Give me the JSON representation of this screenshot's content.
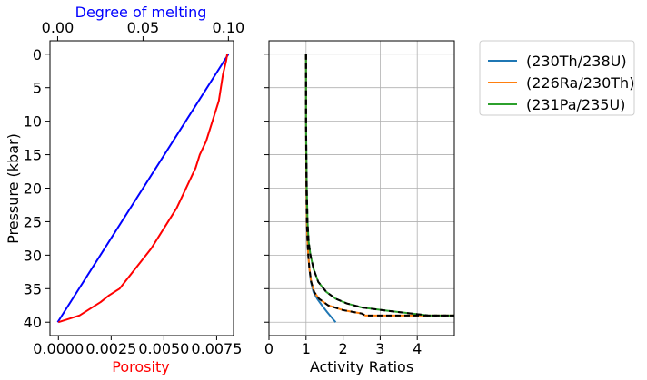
{
  "chart_data": [
    {
      "type": "line",
      "panel": "left",
      "title": "",
      "xlabel": "Porosity",
      "x2label": "Degree of melting",
      "ylabel": "Pressure (kbar)",
      "xlim": [
        -0.0004,
        0.0083
      ],
      "x2lim": [
        -0.0045,
        0.103
      ],
      "ylim": [
        42,
        -2
      ],
      "y_inverted": true,
      "x_ticks": [
        "0.0000",
        "0.0025",
        "0.0050",
        "0.0075"
      ],
      "x_tick_values": [
        0,
        0.0025,
        0.005,
        0.0075
      ],
      "x2_ticks": [
        "0.00",
        "0.05",
        "0.10"
      ],
      "x2_tick_values": [
        0,
        0.05,
        0.1
      ],
      "y_ticks": [
        "0",
        "5",
        "10",
        "15",
        "20",
        "25",
        "30",
        "35",
        "40"
      ],
      "y_tick_values": [
        0,
        5,
        10,
        15,
        20,
        25,
        30,
        35,
        40
      ],
      "grid": false,
      "colors": {
        "porosity": "#ff0000",
        "melting": "#0000ff"
      },
      "series": [
        {
          "axis": "top",
          "color": "#0000ff",
          "points": [
            [
              0.0,
              40
            ],
            [
              0.1,
              0
            ]
          ]
        },
        {
          "axis": "bottom",
          "color": "#ff0000",
          "points": [
            [
              0.0,
              40
            ],
            [
              0.001,
              39
            ],
            [
              0.0015,
              38
            ],
            [
              0.002,
              37
            ],
            [
              0.0024,
              36
            ],
            [
              0.0029,
              35
            ],
            [
              0.0034,
              33
            ],
            [
              0.0039,
              31
            ],
            [
              0.0044,
              29
            ],
            [
              0.0048,
              27
            ],
            [
              0.0052,
              25
            ],
            [
              0.0056,
              23
            ],
            [
              0.0059,
              21
            ],
            [
              0.0062,
              19
            ],
            [
              0.0065,
              17
            ],
            [
              0.0067,
              15
            ],
            [
              0.007,
              13
            ],
            [
              0.0072,
              11
            ],
            [
              0.0074,
              9
            ],
            [
              0.0076,
              7
            ],
            [
              0.0077,
              5
            ],
            [
              0.0078,
              3
            ],
            [
              0.00795,
              1
            ],
            [
              0.008,
              0
            ]
          ]
        }
      ]
    },
    {
      "type": "line",
      "panel": "right",
      "title": "",
      "xlabel": "Activity Ratios",
      "ylabel": "",
      "xlim": [
        0,
        5
      ],
      "ylim": [
        42,
        -2
      ],
      "y_inverted": true,
      "x_ticks": [
        "0",
        "1",
        "2",
        "3",
        "4"
      ],
      "x_tick_values": [
        0,
        1,
        2,
        3,
        4
      ],
      "y_tick_values": [
        0,
        5,
        10,
        15,
        20,
        25,
        30,
        35,
        40
      ],
      "grid": true,
      "legend_position": "outside-right-top",
      "series": [
        {
          "name": "(230Th/238U)",
          "color": "#1f77b4",
          "points": [
            [
              1.0,
              0
            ],
            [
              1.0,
              10
            ],
            [
              1.01,
              20
            ],
            [
              1.02,
              25
            ],
            [
              1.04,
              28
            ],
            [
              1.06,
              30
            ],
            [
              1.09,
              32
            ],
            [
              1.13,
              34
            ],
            [
              1.2,
              35.5
            ],
            [
              1.3,
              36.5
            ],
            [
              1.43,
              37.5
            ],
            [
              1.57,
              38.5
            ],
            [
              1.72,
              39.5
            ],
            [
              1.8,
              40
            ]
          ]
        },
        {
          "name": "(226Ra/230Th)",
          "color": "#ff7f0e",
          "points": [
            [
              1.0,
              0
            ],
            [
              1.0,
              10
            ],
            [
              1.01,
              20
            ],
            [
              1.02,
              25
            ],
            [
              1.04,
              28
            ],
            [
              1.06,
              30
            ],
            [
              1.09,
              32
            ],
            [
              1.14,
              34
            ],
            [
              1.22,
              35.5
            ],
            [
              1.35,
              36.5
            ],
            [
              1.6,
              37.5
            ],
            [
              2.0,
              38.2
            ],
            [
              2.5,
              38.7
            ],
            [
              2.6,
              39
            ],
            [
              5.0,
              39
            ]
          ]
        },
        {
          "name": "(231Pa/235U)",
          "color": "#2ca02c",
          "points": [
            [
              1.0,
              0
            ],
            [
              1.0,
              10
            ],
            [
              1.02,
              20
            ],
            [
              1.04,
              25
            ],
            [
              1.07,
              28
            ],
            [
              1.12,
              30
            ],
            [
              1.2,
              32
            ],
            [
              1.33,
              34
            ],
            [
              1.55,
              35.5
            ],
            [
              1.8,
              36.5
            ],
            [
              2.1,
              37.2
            ],
            [
              2.5,
              37.8
            ],
            [
              3.2,
              38.3
            ],
            [
              4.0,
              38.8
            ],
            [
              4.3,
              39
            ],
            [
              5.0,
              39
            ]
          ]
        }
      ],
      "overlay_dashed": {
        "color": "#000000",
        "follows": [
          "(226Ra/230Th)",
          "(231Pa/235U)"
        ]
      }
    }
  ]
}
